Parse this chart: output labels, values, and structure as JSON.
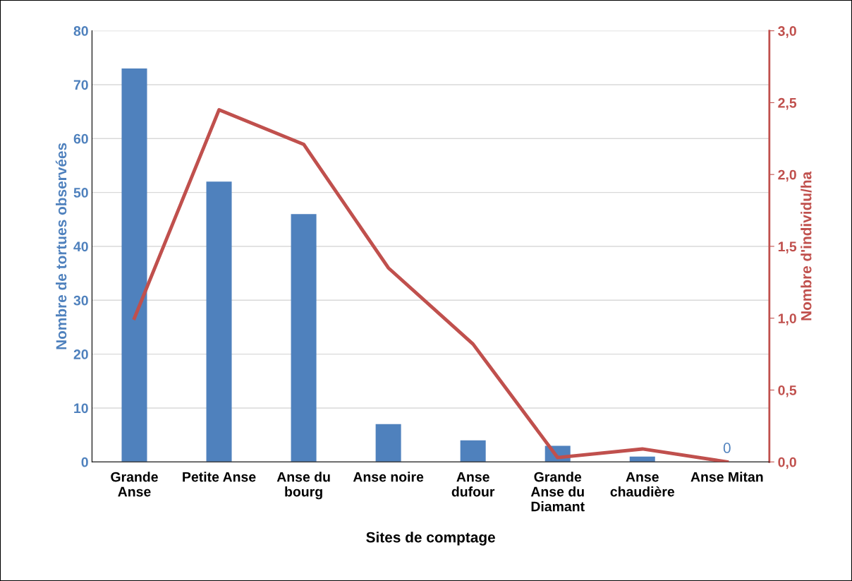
{
  "chart_data": {
    "type": "bar",
    "xlabel": "Sites de comptage",
    "ylabel": "Nombre de tortues observées",
    "y2label": "Nombre d'individu/ha",
    "categories": [
      "Grande\nAnse",
      "Petite Anse",
      "Anse du\nbourg",
      "Anse noire",
      "Anse\ndufour",
      "Grande\nAnse du\nDiamant",
      "Anse\nchaudière",
      "Anse Mitan"
    ],
    "series": [
      {
        "color": "#4f81bd",
        "values": [
          73,
          52,
          46,
          7,
          4,
          3,
          1,
          0
        ],
        "value_labels": [
          null,
          null,
          null,
          null,
          null,
          null,
          null,
          "0"
        ]
      },
      {
        "type": "line",
        "axis": "y2",
        "color": "#c0504d",
        "values": [
          1.0,
          2.45,
          2.21,
          1.35,
          0.82,
          0.03,
          0.09,
          0.0
        ]
      }
    ],
    "ylim": [
      0,
      80
    ],
    "yticks": [
      0,
      10,
      20,
      30,
      40,
      50,
      60,
      70,
      80
    ],
    "y2lim": [
      0,
      3.0
    ],
    "y2ticks": [
      {
        "value": 0,
        "label": "0,0"
      },
      {
        "value": 0.5,
        "label": "0,5"
      },
      {
        "value": 1.0,
        "label": "1,0"
      },
      {
        "value": 1.5,
        "label": "1,5"
      },
      {
        "value": 2.0,
        "label": "2,0"
      },
      {
        "value": 2.5,
        "label": "2,5"
      },
      {
        "value": 3.0,
        "label": "3,0"
      }
    ],
    "grid": "y"
  }
}
